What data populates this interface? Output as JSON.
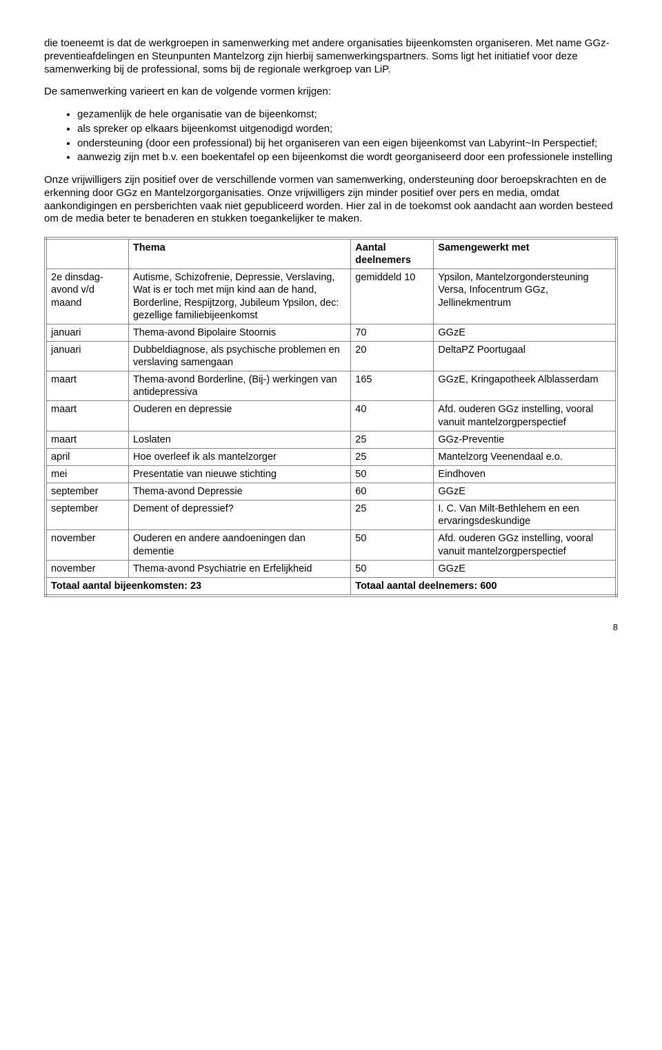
{
  "para1": "die toeneemt is dat de werkgroepen in samenwerking met andere organisaties bijeenkomsten organiseren. Met name GGz-preventieafdelingen en Steunpunten Mantelzorg zijn hierbij samenwerkingspartners. Soms ligt het initiatief voor deze samenwerking bij de professional, soms bij de regionale werkgroep van LiP.",
  "para2": "De samenwerking varieert en kan de volgende vormen krijgen:",
  "bullets": [
    "gezamenlijk de hele organisatie van de bijeenkomst;",
    "als spreker op elkaars bijeenkomst uitgenodigd worden;",
    "ondersteuning (door een professional) bij het organiseren van een eigen bijeenkomst van Labyrint~In Perspectief;",
    "aanwezig zijn met b.v. een boekentafel op een bijeenkomst die wordt georganiseerd door een professionele instelling"
  ],
  "para3": "Onze vrijwilligers zijn positief over de verschillende vormen van samenwerking, ondersteuning door beroepskrachten en de erkenning door GGz en Mantelzorgorganisaties. Onze vrijwilligers zijn minder positief over pers en media, omdat aankondigingen en persberichten vaak niet gepubliceerd worden. Hier zal in de toekomst ook aandacht aan worden besteed om de media beter te benaderen en stukken toegankelijker te maken.",
  "headers": {
    "c1": "Thema",
    "c2": "Aantal deelnemers",
    "c3": "Samengewerkt met"
  },
  "rows": [
    {
      "c0": "2e dinsdag-avond v/d maand",
      "c1": "Autisme, Schizofrenie, Depressie, Verslaving, Wat is er toch met mijn kind aan de hand, Borderline, Respijtzorg, Jubileum Ypsilon, dec: gezellige familiebijeenkomst",
      "c2": "gemiddeld 10",
      "c3": "Ypsilon, Mantelzorgondersteuning Versa, Infocentrum GGz, Jellinekmentrum"
    },
    {
      "c0": "januari",
      "c1": "Thema-avond Bipolaire Stoornis",
      "c2": "70",
      "c3": "GGzE"
    },
    {
      "c0": "januari",
      "c1": "Dubbeldiagnose, als psychische problemen en verslaving samengaan",
      "c2": "20",
      "c3": "DeltaPZ Poortugaal"
    },
    {
      "c0": "maart",
      "c1": "Thema-avond Borderline, (Bij-) werkingen van antidepressiva",
      "c2": "165",
      "c3": "GGzE, Kringapotheek Alblasserdam"
    },
    {
      "c0": "maart",
      "c1": "Ouderen en depressie",
      "c2": "40",
      "c3": "Afd. ouderen GGz instelling, vooral vanuit mantelzorgperspectief"
    },
    {
      "c0": "maart",
      "c1": "Loslaten",
      "c2": "25",
      "c3": "GGz-Preventie"
    },
    {
      "c0": "april",
      "c1": "Hoe overleef ik als mantelzorger",
      "c2": "25",
      "c3": "Mantelzorg Veenendaal e.o."
    },
    {
      "c0": "mei",
      "c1": "Presentatie van nieuwe stichting",
      "c2": "50",
      "c3": "Eindhoven"
    },
    {
      "c0": "september",
      "c1": "Thema-avond Depressie",
      "c2": "60",
      "c3": "GGzE"
    },
    {
      "c0": "september",
      "c1": "Dement of depressief?",
      "c2": "25",
      "c3": "I. C. Van Milt-Bethlehem en een ervaringsdeskundige"
    },
    {
      "c0": "november",
      "c1": "Ouderen en andere aandoeningen dan dementie",
      "c2": "50",
      "c3": "Afd. ouderen GGz instelling, vooral vanuit mantelzorgperspectief"
    },
    {
      "c0": "november",
      "c1": "Thema-avond Psychiatrie en Erfelijkheid",
      "c2": "50",
      "c3": "GGzE"
    }
  ],
  "totals": {
    "left": "Totaal aantal bijeenkomsten:  23",
    "right": "Totaal aantal deelnemers: 600"
  },
  "pagenum": "8"
}
